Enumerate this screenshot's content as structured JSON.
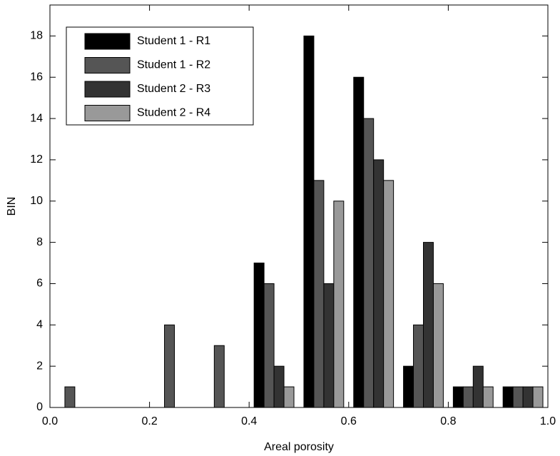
{
  "chart_data": {
    "type": "histogram",
    "x_label": "Areal porosity",
    "y_label": "BIN",
    "bins": [
      0.0,
      0.1,
      0.2,
      0.3,
      0.4,
      0.5,
      0.6,
      0.7,
      0.8,
      0.9,
      1.0
    ],
    "series": [
      {
        "name": "Student 1 - R1",
        "color": "#000000",
        "values": [
          0,
          0,
          0,
          0,
          7,
          18,
          16,
          2,
          1,
          1
        ]
      },
      {
        "name": "Student 1 - R2",
        "color": "#555555",
        "values": [
          1,
          0,
          4,
          3,
          6,
          11,
          14,
          4,
          1,
          1
        ]
      },
      {
        "name": "Student 2 - R3",
        "color": "#333333",
        "values": [
          0,
          0,
          0,
          0,
          2,
          6,
          12,
          8,
          2,
          1
        ]
      },
      {
        "name": "Student 2 - R4",
        "color": "#999999",
        "values": [
          0,
          0,
          0,
          0,
          1,
          10,
          11,
          6,
          1,
          1
        ]
      }
    ],
    "xlim": [
      0,
      1
    ],
    "ylim": [
      0,
      19.5
    ],
    "xticks": [
      {
        "value": 0,
        "label": "0.0"
      },
      0.2,
      0.4,
      0.6,
      0.8,
      {
        "value": 1,
        "label": "1.0"
      }
    ],
    "yticks": [
      0,
      2,
      4,
      6,
      8,
      10,
      12,
      14,
      16,
      18
    ],
    "legend": "upper left"
  }
}
